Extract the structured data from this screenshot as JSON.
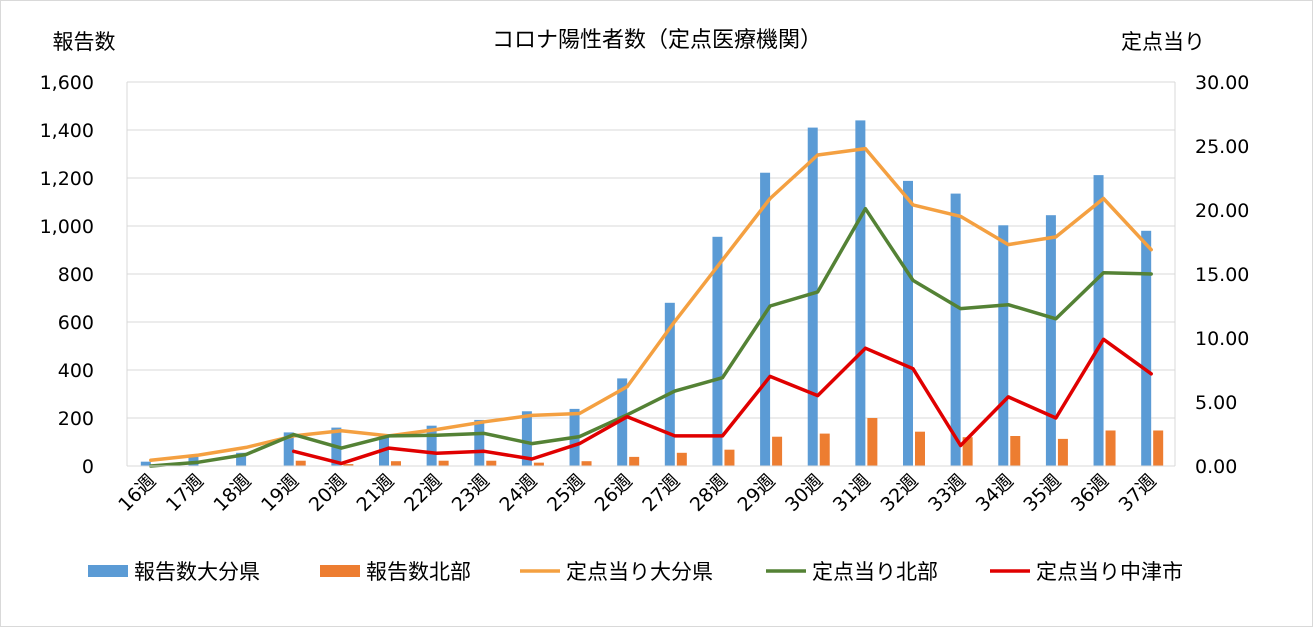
{
  "chart_data": {
    "type": "bar+line",
    "title": "コロナ陽性者数（定点医療機関）",
    "ylabel": "報告数",
    "y2label": "定点当り",
    "ylim": [
      0,
      1600
    ],
    "y2lim": [
      0,
      30
    ],
    "yticks": [
      "0",
      "200",
      "400",
      "600",
      "800",
      "1,000",
      "1,200",
      "1,400",
      "1,600"
    ],
    "y2ticks": [
      "0.00",
      "5.00",
      "10.00",
      "15.00",
      "20.00",
      "25.00",
      "30.00"
    ],
    "categories": [
      "16週",
      "17週",
      "18週",
      "19週",
      "20週",
      "21週",
      "22週",
      "23週",
      "24週",
      "25週",
      "26週",
      "27週",
      "28週",
      "29週",
      "30週",
      "31週",
      "32週",
      "33週",
      "34週",
      "35週",
      "36週",
      "37週"
    ],
    "grid": true,
    "legend_position": "bottom",
    "bar_series": [
      {
        "name": "報告数大分県",
        "color": "#5b9bd5",
        "values": [
          18,
          38,
          55,
          140,
          160,
          130,
          168,
          192,
          228,
          238,
          365,
          680,
          955,
          1222,
          1410,
          1440,
          1188,
          1135,
          1003,
          1045,
          1212,
          980
        ]
      },
      {
        "name": "報告数北部",
        "color": "#ed7d31",
        "values": [
          0,
          0,
          0,
          22,
          8,
          20,
          22,
          22,
          14,
          20,
          38,
          55,
          68,
          122,
          135,
          200,
          143,
          120,
          125,
          113,
          148,
          148
        ]
      }
    ],
    "line_series": [
      {
        "name": "定点当り大分県",
        "color": "#f4a041",
        "values": [
          0.45,
          0.85,
          1.45,
          2.35,
          2.75,
          2.35,
          2.85,
          3.45,
          3.95,
          4.1,
          6.2,
          11.3,
          16.1,
          20.9,
          24.3,
          24.8,
          20.4,
          19.5,
          17.3,
          17.9,
          20.9,
          16.9
        ]
      },
      {
        "name": "定点当り北部",
        "color": "#548235",
        "values": [
          0.0,
          0.3,
          0.9,
          2.45,
          1.4,
          2.35,
          2.4,
          2.55,
          1.75,
          2.3,
          4.0,
          5.85,
          6.9,
          12.5,
          13.6,
          20.1,
          14.5,
          12.3,
          12.6,
          11.5,
          15.1,
          15.0
        ]
      },
      {
        "name": "定点当り中津市",
        "color": "#e00000",
        "start_index": 3,
        "values": [
          1.15,
          0.2,
          1.4,
          1.0,
          1.15,
          0.55,
          1.75,
          3.85,
          2.35,
          2.35,
          7.0,
          5.5,
          9.2,
          7.6,
          1.6,
          5.4,
          3.75,
          9.9,
          7.2
        ]
      }
    ]
  }
}
